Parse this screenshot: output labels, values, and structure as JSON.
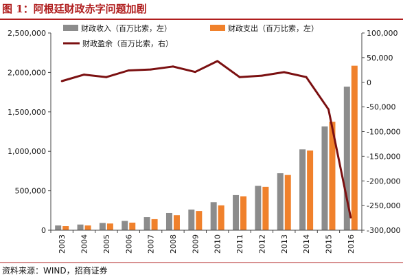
{
  "figure": {
    "title": "图 1：阿根廷财政赤字问题加剧",
    "source": "资料来源：WIND，招商证券"
  },
  "colors": {
    "revenue": "#8c8c8c",
    "expenditure": "#f0812c",
    "surplus": "#7b1011",
    "accent": "#b01e1e"
  },
  "chart_data": {
    "type": "bar",
    "categories": [
      "2003",
      "2004",
      "2005",
      "2006",
      "2007",
      "2008",
      "2009",
      "2010",
      "2011",
      "2012",
      "2013",
      "2014",
      "2015",
      "2016"
    ],
    "series": [
      {
        "name": "财政收入（百万比索，左）",
        "type": "bar",
        "axis": "left",
        "values": [
          60000,
          72000,
          92000,
          118000,
          165000,
          218000,
          262000,
          355000,
          445000,
          562000,
          722000,
          1025000,
          1315000,
          1820000
        ]
      },
      {
        "name": "财政支出（百万比索，左）",
        "type": "bar",
        "axis": "left",
        "values": [
          52000,
          60000,
          85000,
          96000,
          140000,
          190000,
          243000,
          315000,
          430000,
          550000,
          700000,
          1010000,
          1375000,
          2085000
        ]
      },
      {
        "name": "财政盈余（百万比索，右）",
        "type": "line",
        "axis": "right",
        "values": [
          2500,
          15500,
          10500,
          24000,
          26000,
          32000,
          21000,
          43000,
          10500,
          13500,
          20500,
          10500,
          -55000,
          -274000
        ]
      }
    ],
    "y_left": {
      "range": [
        0,
        2500000
      ],
      "ticks": [
        "0",
        "500,000",
        "1,000,000",
        "1,500,000",
        "2,000,000",
        "2,500,000"
      ]
    },
    "y_right": {
      "range": [
        -300000,
        100000
      ],
      "ticks": [
        "-300,000",
        "-250,000",
        "-200,000",
        "-150,000",
        "-100,000",
        "-50,000",
        "0",
        "50,000",
        "100,000"
      ]
    },
    "grid": false,
    "legend": "top"
  }
}
